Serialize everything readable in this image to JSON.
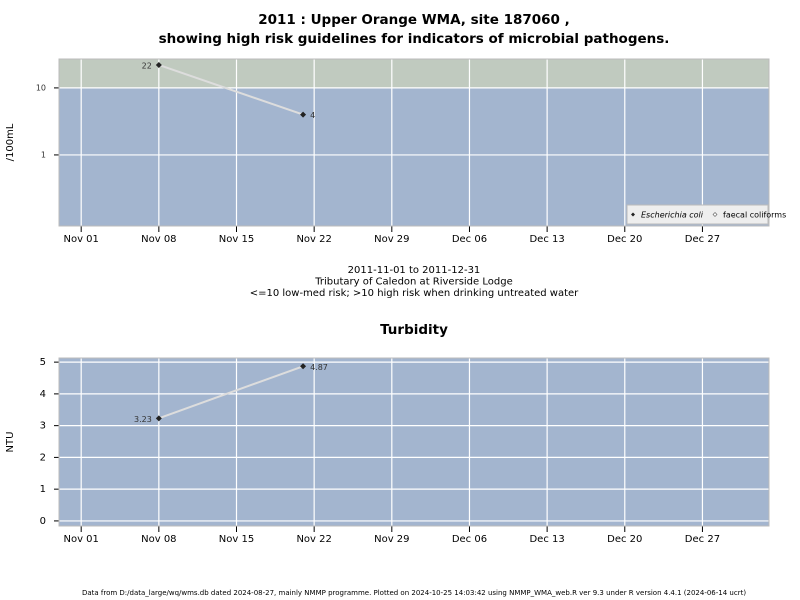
{
  "chart_data": [
    {
      "type": "line",
      "title": [
        "2011 : Upper Orange WMA, site 187060 ,",
        "showing high risk guidelines for indicators of microbial pathogens."
      ],
      "subtitle": [
        "2011-11-01 to 2011-12-31",
        "Tributary of Caledon at Riverside Lodge",
        "<=10 low-med risk; >10 high risk when drinking untreated water"
      ],
      "y_label": "/100mL",
      "log_y": true,
      "x": [
        "2011-11-08",
        "2011-11-21"
      ],
      "series": [
        {
          "name": "Escherichia coli",
          "color": "#222222",
          "values": [
            22,
            4
          ],
          "value_labels": [
            "22",
            "4"
          ]
        },
        {
          "name": "faecal coliforms",
          "color": "#ffffff",
          "values": [
            null,
            null
          ]
        }
      ],
      "line_color": "#dddddd",
      "high_risk_above": 10,
      "band_colors": {
        "low": "#a3b5cf",
        "high": "#c0cabf"
      },
      "xlim": [
        "2011-10-30",
        "2012-01-02"
      ],
      "xticks": [
        {
          "value": "2011-11-01",
          "label": "Nov 01"
        },
        {
          "value": "2011-11-08",
          "label": "Nov 08"
        },
        {
          "value": "2011-11-15",
          "label": "Nov 15"
        },
        {
          "value": "2011-11-22",
          "label": "Nov 22"
        },
        {
          "value": "2011-11-29",
          "label": "Nov 29"
        },
        {
          "value": "2011-12-06",
          "label": "Dec 06"
        },
        {
          "value": "2011-12-13",
          "label": "Dec 13"
        },
        {
          "value": "2011-12-20",
          "label": "Dec 20"
        },
        {
          "value": "2011-12-27",
          "label": "Dec 27"
        }
      ],
      "ylim": [
        0.087,
        27
      ],
      "yticks": [
        1,
        10
      ],
      "grid": true,
      "legend": "bottom-right"
    },
    {
      "type": "line",
      "title": [
        "Turbidity"
      ],
      "y_label": "NTU",
      "log_y": false,
      "x": [
        "2011-11-08",
        "2011-11-21"
      ],
      "series": [
        {
          "name": null,
          "color": "#222222",
          "values": [
            3.23,
            4.87
          ]
        }
      ],
      "line_color": "#dddddd",
      "band_colors": {
        "low": "#a3b5cf"
      },
      "xlim": [
        "2011-10-30",
        "2012-01-02"
      ],
      "xticks": [
        {
          "value": "2011-11-01",
          "label": "Nov 01"
        },
        {
          "value": "2011-11-08",
          "label": "Nov 08"
        },
        {
          "value": "2011-11-15",
          "label": "Nov 15"
        },
        {
          "value": "2011-11-22",
          "label": "Nov 22"
        },
        {
          "value": "2011-11-29",
          "label": "Nov 29"
        },
        {
          "value": "2011-12-06",
          "label": "Dec 06"
        },
        {
          "value": "2011-12-13",
          "label": "Dec 13"
        },
        {
          "value": "2011-12-20",
          "label": "Dec 20"
        },
        {
          "value": "2011-12-27",
          "label": "Dec 27"
        }
      ],
      "ylim": [
        -0.16,
        5.13
      ],
      "yticks": [
        0,
        1,
        2,
        3,
        4,
        5
      ],
      "grid": true
    }
  ],
  "footer": "Data from D:/data_large/wq/wms.db dated 2024-08-27, mainly NMMP programme. Plotted on 2024-10-25 14:03:42 using NMMP_WMA_web.R ver 9.3 under R version 4.4.1 (2024-06-14 ucrt)"
}
